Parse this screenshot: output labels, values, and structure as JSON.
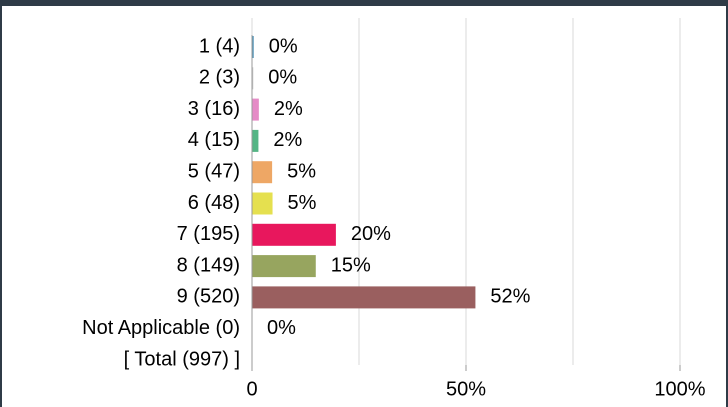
{
  "chart_data": {
    "type": "barh",
    "categories": [
      "1 (4)",
      "2 (3)",
      "3 (16)",
      "4 (15)",
      "5 (47)",
      "6 (48)",
      "7 (195)",
      "8 (149)",
      "9 (520)",
      "Not Applicable (0)",
      "[ Total (997) ]"
    ],
    "values": [
      0.4,
      0.3,
      1.6,
      1.5,
      4.7,
      4.8,
      19.6,
      14.9,
      52.2,
      0,
      null
    ],
    "value_labels": [
      "0%",
      "0%",
      "2%",
      "2%",
      "5%",
      "5%",
      "20%",
      "15%",
      "52%",
      "0%",
      null
    ],
    "colors": [
      "#4f93b8",
      "#c9c9c9",
      "#e58bc6",
      "#55b585",
      "#eea765",
      "#e5e04f",
      "#e8175d",
      "#97a55f",
      "#9a5f5f",
      "#888888",
      null
    ],
    "xlim": [
      0,
      100
    ],
    "xticks": [
      0,
      {
        "value": 50,
        "label": "50%"
      },
      {
        "value": 100,
        "label": "100%"
      }
    ],
    "grid_lines": [
      0,
      25,
      50,
      75,
      100
    ],
    "grid": true
  }
}
